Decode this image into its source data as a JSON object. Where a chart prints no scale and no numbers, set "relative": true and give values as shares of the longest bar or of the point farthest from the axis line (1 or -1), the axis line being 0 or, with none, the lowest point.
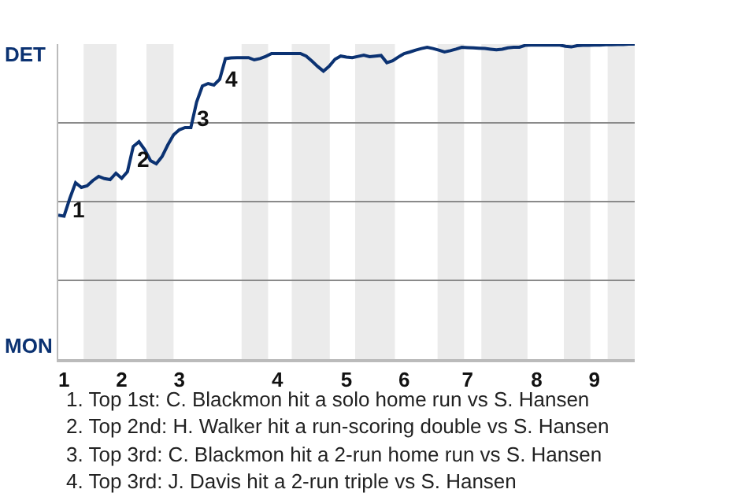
{
  "chart_data": {
    "type": "line",
    "relative": true,
    "categories": [
      null,
      "1",
      null,
      null,
      null,
      null,
      null,
      null,
      null,
      null,
      null,
      "2",
      null,
      null,
      null,
      null,
      null,
      null,
      null,
      null,
      null,
      "3",
      null,
      null,
      null,
      null,
      null,
      null,
      null,
      null,
      null,
      null,
      null,
      null,
      null,
      null,
      null,
      null,
      "4",
      null,
      null,
      null,
      null,
      null,
      null,
      null,
      null,
      null,
      null,
      null,
      "5",
      null,
      null,
      null,
      null,
      null,
      null,
      null,
      null,
      null,
      "6",
      null,
      null,
      null,
      null,
      null,
      null,
      null,
      null,
      null,
      null,
      "7",
      null,
      null,
      null,
      null,
      null,
      null,
      null,
      null,
      null,
      null,
      null,
      "8",
      null,
      null,
      null,
      null,
      null,
      null,
      null,
      null,
      null,
      "9",
      null,
      null,
      null,
      null,
      null,
      null,
      null
    ],
    "series": [
      {
        "color": "#0b3272",
        "values": [
          0.457,
          0.454,
          0.51,
          0.56,
          0.545,
          0.55,
          0.567,
          0.58,
          0.573,
          0.57,
          0.59,
          0.574,
          0.595,
          0.675,
          0.69,
          0.665,
          0.63,
          0.62,
          0.643,
          0.68,
          0.712,
          0.728,
          0.735,
          0.735,
          0.816,
          0.867,
          0.875,
          0.87,
          0.888,
          0.954,
          0.956,
          0.957,
          0.957,
          0.957,
          0.95,
          0.954,
          0.961,
          0.97,
          0.97,
          0.97,
          0.97,
          0.97,
          0.97,
          0.962,
          0.946,
          0.929,
          0.914,
          0.93,
          0.952,
          0.962,
          0.959,
          0.957,
          0.961,
          0.965,
          0.96,
          0.962,
          0.964,
          0.941,
          0.947,
          0.959,
          0.97,
          0.975,
          0.981,
          0.986,
          0.99,
          0.986,
          0.981,
          0.975,
          0.979,
          0.984,
          0.99,
          0.989,
          0.988,
          0.987,
          0.986,
          0.984,
          0.982,
          0.984,
          0.988,
          0.99,
          0.99,
          0.996,
          0.997,
          0.997,
          0.997,
          0.997,
          0.997,
          0.997,
          0.993,
          0.991,
          0.995,
          0.996,
          0.996,
          0.997,
          0.997,
          0.998,
          0.998,
          0.999,
          0.999,
          1,
          1
        ]
      }
    ],
    "grid": "y",
    "marker": "none",
    "line_style": "solid",
    "annotations": [
      "DET",
      "MON",
      "1",
      "2",
      "3",
      "4",
      "1. Top 1st: C. Blackmon hit a solo home run vs S. Hansen",
      "2. Top 2nd: H. Walker hit a run-scoring double vs S. Hansen",
      "3. Top 3rd: C. Blackmon hit a 2-run home run vs S. Hansen",
      "4. Top 3rd: J. Davis hit a 2-run triple vs S. Hansen"
    ]
  }
}
